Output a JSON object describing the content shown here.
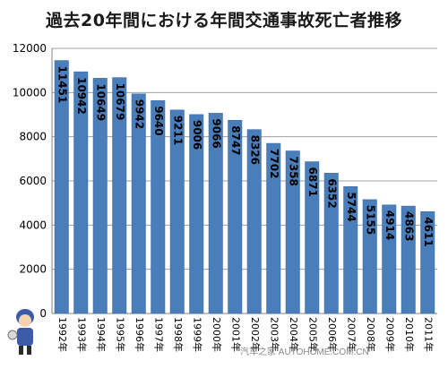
{
  "chart_data": {
    "type": "bar",
    "title": "過去20年間における年間交通事故死亡者推移",
    "categories": [
      "1992年",
      "1993年",
      "1994年",
      "1995年",
      "1996年",
      "1997年",
      "1998年",
      "1999年",
      "2000年",
      "2001年",
      "2002年",
      "2003年",
      "2004年",
      "2005年",
      "2006年",
      "2007年",
      "2008年",
      "2009年",
      "2010年",
      "2011年"
    ],
    "values": [
      11451,
      10942,
      10649,
      10679,
      9942,
      9640,
      9211,
      9006,
      9066,
      8747,
      8326,
      7702,
      7358,
      6871,
      6352,
      5744,
      5155,
      4914,
      4863,
      4611
    ],
    "ylim": [
      0,
      12000
    ],
    "yticks": [
      0,
      2000,
      4000,
      6000,
      8000,
      10000,
      12000
    ],
    "grid": true,
    "colors": {
      "bar": "#4a7ebb",
      "bar_edge": "#3d6aa0",
      "grid": "#a0a0a0",
      "label_text": "#000000"
    }
  },
  "watermark": "汽车之家 AUTOHOME.COM.CN"
}
